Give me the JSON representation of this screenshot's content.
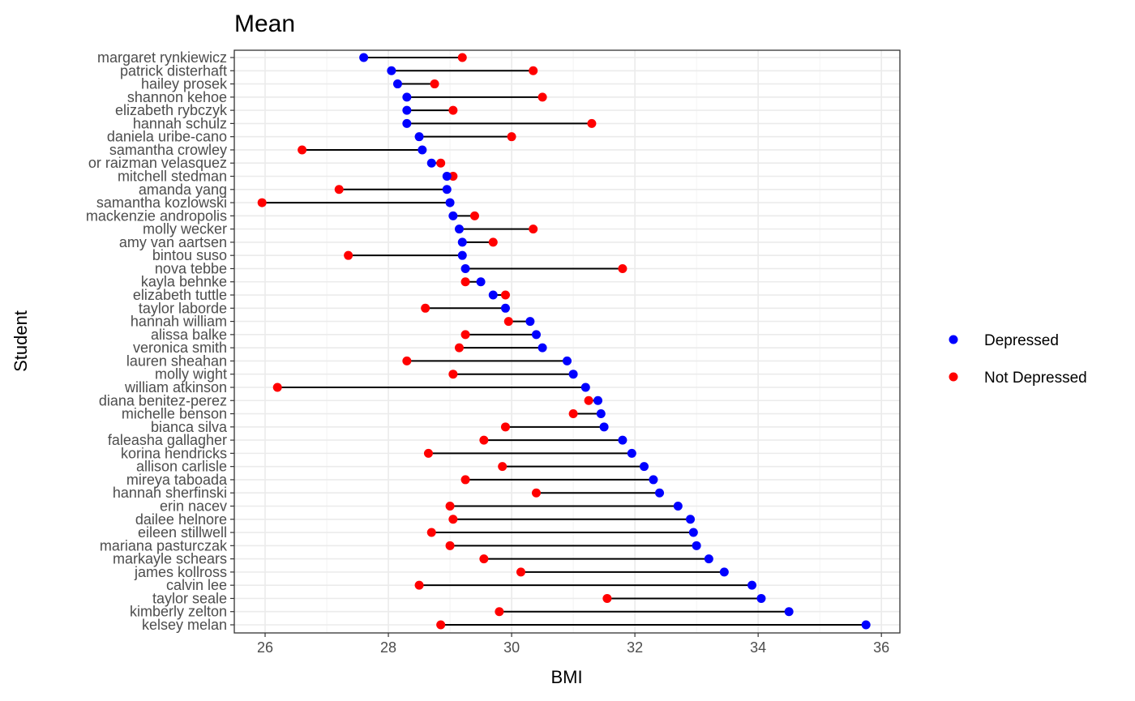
{
  "chart_data": {
    "type": "dumbbell",
    "title": "Mean",
    "xlabel": "BMI",
    "ylabel": "Student",
    "xlim": [
      25.5,
      36.3
    ],
    "xticks": [
      26,
      28,
      30,
      32,
      34,
      36
    ],
    "grid": true,
    "legend_position": "right",
    "series": [
      {
        "name": "Depressed",
        "color": "#0000ff"
      },
      {
        "name": "Not Depressed",
        "color": "#ff0000"
      }
    ],
    "students": [
      {
        "name": "margaret rynkiewicz",
        "depressed": 27.6,
        "not_depressed": 29.2
      },
      {
        "name": "patrick disterhaft",
        "depressed": 28.05,
        "not_depressed": 30.35
      },
      {
        "name": "hailey prosek",
        "depressed": 28.15,
        "not_depressed": 28.75
      },
      {
        "name": "shannon kehoe",
        "depressed": 28.3,
        "not_depressed": 30.5
      },
      {
        "name": "elizabeth rybczyk",
        "depressed": 28.3,
        "not_depressed": 29.05
      },
      {
        "name": "hannah schulz",
        "depressed": 28.3,
        "not_depressed": 31.3
      },
      {
        "name": "daniela uribe-cano",
        "depressed": 28.5,
        "not_depressed": 30.0
      },
      {
        "name": "samantha crowley",
        "depressed": 28.55,
        "not_depressed": 26.6
      },
      {
        "name": "or raizman velasquez",
        "depressed": 28.7,
        "not_depressed": 28.85
      },
      {
        "name": "mitchell stedman",
        "depressed": 28.95,
        "not_depressed": 29.05
      },
      {
        "name": "amanda yang",
        "depressed": 28.95,
        "not_depressed": 27.2
      },
      {
        "name": "samantha kozlowski",
        "depressed": 29.0,
        "not_depressed": 25.95
      },
      {
        "name": "mackenzie andropolis",
        "depressed": 29.05,
        "not_depressed": 29.4
      },
      {
        "name": "molly wecker",
        "depressed": 29.15,
        "not_depressed": 30.35
      },
      {
        "name": "amy van aartsen",
        "depressed": 29.2,
        "not_depressed": 29.7
      },
      {
        "name": "bintou suso",
        "depressed": 29.2,
        "not_depressed": 27.35
      },
      {
        "name": "nova tebbe",
        "depressed": 29.25,
        "not_depressed": 31.8
      },
      {
        "name": "kayla behnke",
        "depressed": 29.5,
        "not_depressed": 29.25
      },
      {
        "name": "elizabeth tuttle",
        "depressed": 29.7,
        "not_depressed": 29.9
      },
      {
        "name": "taylor laborde",
        "depressed": 29.9,
        "not_depressed": 28.6
      },
      {
        "name": "hannah william",
        "depressed": 30.3,
        "not_depressed": 29.95
      },
      {
        "name": "alissa balke",
        "depressed": 30.4,
        "not_depressed": 29.25
      },
      {
        "name": "veronica smith",
        "depressed": 30.5,
        "not_depressed": 29.15
      },
      {
        "name": "lauren sheahan",
        "depressed": 30.9,
        "not_depressed": 28.3
      },
      {
        "name": "molly wight",
        "depressed": 31.0,
        "not_depressed": 29.05
      },
      {
        "name": "william atkinson",
        "depressed": 31.2,
        "not_depressed": 26.2
      },
      {
        "name": "diana benitez-perez",
        "depressed": 31.4,
        "not_depressed": 31.25
      },
      {
        "name": "michelle benson",
        "depressed": 31.45,
        "not_depressed": 31.0
      },
      {
        "name": "bianca silva",
        "depressed": 31.5,
        "not_depressed": 29.9
      },
      {
        "name": "faleasha gallagher",
        "depressed": 31.8,
        "not_depressed": 29.55
      },
      {
        "name": "korina hendricks",
        "depressed": 31.95,
        "not_depressed": 28.65
      },
      {
        "name": "allison carlisle",
        "depressed": 32.15,
        "not_depressed": 29.85
      },
      {
        "name": "mireya taboada",
        "depressed": 32.3,
        "not_depressed": 29.25
      },
      {
        "name": "hannah sherfinski",
        "depressed": 32.4,
        "not_depressed": 30.4
      },
      {
        "name": "erin nacev",
        "depressed": 32.7,
        "not_depressed": 29.0
      },
      {
        "name": "dailee helnore",
        "depressed": 32.9,
        "not_depressed": 29.05
      },
      {
        "name": "eileen stillwell",
        "depressed": 32.95,
        "not_depressed": 28.7
      },
      {
        "name": "mariana pasturczak",
        "depressed": 33.0,
        "not_depressed": 29.0
      },
      {
        "name": "markayle schears",
        "depressed": 33.2,
        "not_depressed": 29.55
      },
      {
        "name": "james kollross",
        "depressed": 33.45,
        "not_depressed": 30.15
      },
      {
        "name": "calvin lee",
        "depressed": 33.9,
        "not_depressed": 28.5
      },
      {
        "name": "taylor seale",
        "depressed": 34.05,
        "not_depressed": 31.55
      },
      {
        "name": "kimberly zelton",
        "depressed": 34.5,
        "not_depressed": 29.8
      },
      {
        "name": "kelsey melan",
        "depressed": 35.75,
        "not_depressed": 28.85
      }
    ]
  }
}
